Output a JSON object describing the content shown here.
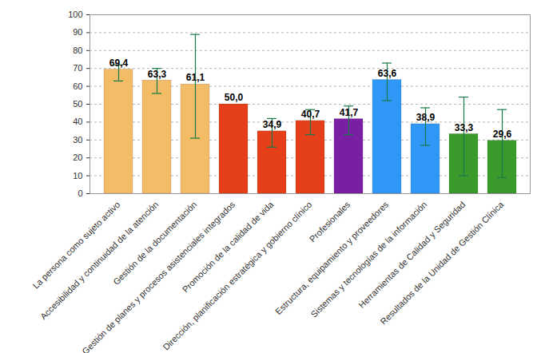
{
  "chart_data": {
    "type": "bar",
    "categories": [
      "La persona como sujeto activo",
      "Accesibilidad y continuidad de la atención",
      "Gestión de la documentación",
      "Gestión de planes y procesos asistenciales integrados",
      "Promoción de la calidad de vida",
      "Dirección, planificación estratégica y gobierno clínico",
      "Profesionales",
      "Estructura, equipamiento y proveedores",
      "Sistemas y tecnologías de la información",
      "Herramientas de Calidad y Seguridad",
      "Resultados de la Unidad de Gestión Clínica"
    ],
    "values": [
      69.4,
      63.3,
      61.1,
      50.0,
      34.9,
      40.7,
      41.7,
      63.6,
      38.9,
      33.3,
      29.6
    ],
    "value_labels": [
      "69,4",
      "63,3",
      "61,1",
      "50,0",
      "34,9",
      "40,7",
      "41,7",
      "63,6",
      "38,9",
      "33,3",
      "29,6"
    ],
    "error_low": [
      63,
      56,
      31,
      null,
      26,
      33,
      33,
      52,
      27,
      10,
      9
    ],
    "error_high": [
      72,
      70,
      89,
      null,
      42,
      47,
      49,
      73,
      48,
      54,
      47
    ],
    "colors": [
      "#f2bd66",
      "#f2bd66",
      "#f2bd66",
      "#e5401a",
      "#e5401a",
      "#e5401a",
      "#7a1ea3",
      "#2f97f5",
      "#2f97f5",
      "#3a9a2c",
      "#3a9a2c"
    ],
    "ylim": [
      0,
      100
    ],
    "yticks": [
      0,
      10,
      20,
      30,
      40,
      50,
      60,
      70,
      80,
      90,
      100
    ],
    "grid": true,
    "data_labels": true
  }
}
